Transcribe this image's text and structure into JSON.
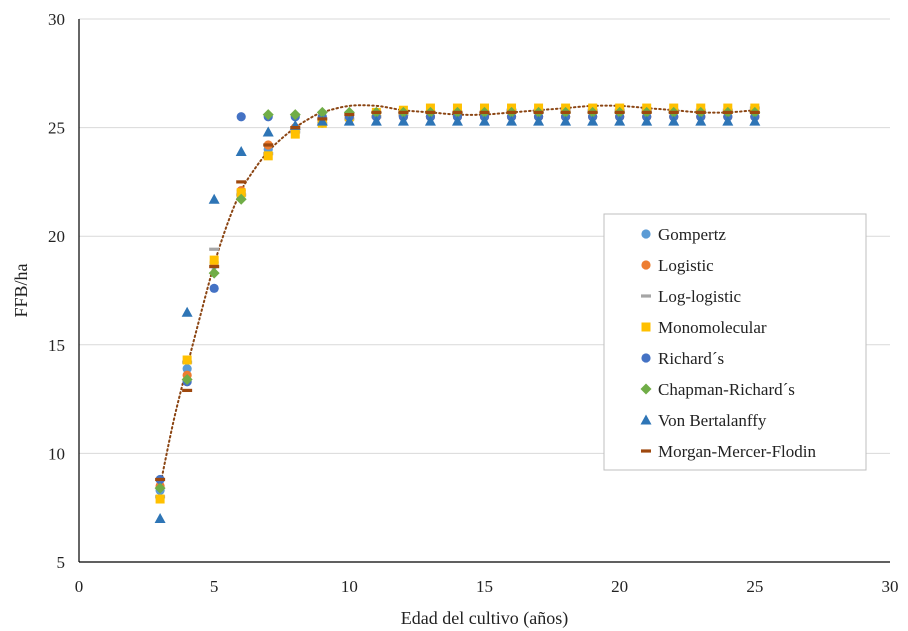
{
  "chart_data": {
    "type": "scatter",
    "title": "",
    "xlabel": "Edad del cultivo (años)",
    "ylabel": "FFB/ha",
    "xlim": [
      0,
      30
    ],
    "ylim": [
      5,
      30
    ],
    "xticks": [
      "0",
      "5",
      "10",
      "15",
      "20",
      "25",
      "30"
    ],
    "yticks": [
      "5",
      "10",
      "15",
      "20",
      "25",
      "30"
    ],
    "grid": "horizontal",
    "legend_position": "right",
    "trendline": {
      "style": "dotted",
      "color": "#8B4513",
      "x": [
        3,
        3.5,
        4,
        4.5,
        5,
        5.5,
        6,
        6.5,
        7,
        7.5,
        8,
        8.5,
        9,
        10,
        11,
        12,
        13,
        14,
        15,
        16,
        17,
        18,
        19,
        20,
        21,
        22,
        23,
        24,
        25
      ],
      "y": [
        8.5,
        11.5,
        14.0,
        16.4,
        18.7,
        20.6,
        22.1,
        23.1,
        23.9,
        24.5,
        25.0,
        25.4,
        25.7,
        26.0,
        26.0,
        25.8,
        25.7,
        25.6,
        25.6,
        25.7,
        25.8,
        25.9,
        26.0,
        26.0,
        25.9,
        25.8,
        25.7,
        25.7,
        25.8
      ]
    },
    "x": [
      3,
      4,
      5,
      6,
      7,
      8,
      9,
      10,
      11,
      12,
      13,
      14,
      15,
      16,
      17,
      18,
      19,
      20,
      21,
      22,
      23,
      24,
      25
    ],
    "series": [
      {
        "name": "Gompertz",
        "marker": "circle",
        "color": "#5B9BD5",
        "values": [
          8.3,
          13.9,
          18.7,
          22.0,
          24.0,
          24.8,
          25.2,
          25.4,
          25.5,
          25.5,
          25.5,
          25.5,
          25.5,
          25.5,
          25.5,
          25.5,
          25.5,
          25.5,
          25.5,
          25.5,
          25.5,
          25.5,
          25.5
        ]
      },
      {
        "name": "Logistic",
        "marker": "circle",
        "color": "#ED7D31",
        "values": [
          8.5,
          13.6,
          18.8,
          22.1,
          24.2,
          25.0,
          25.3,
          25.4,
          25.5,
          25.5,
          25.5,
          25.5,
          25.5,
          25.5,
          25.5,
          25.5,
          25.5,
          25.5,
          25.5,
          25.5,
          25.5,
          25.5,
          25.5
        ]
      },
      {
        "name": "Log-logistic",
        "marker": "dash",
        "color": "#A5A5A5",
        "values": [
          8.0,
          14.2,
          19.4,
          21.9,
          23.8,
          24.8,
          25.2,
          25.4,
          25.5,
          25.6,
          25.7,
          25.7,
          25.7,
          25.8,
          25.8,
          25.8,
          25.8,
          25.8,
          25.8,
          25.8,
          25.8,
          25.8,
          25.9
        ]
      },
      {
        "name": "Monomolecular",
        "marker": "square",
        "color": "#FFC000",
        "values": [
          7.9,
          14.3,
          18.9,
          22.0,
          23.7,
          24.7,
          25.2,
          25.5,
          25.7,
          25.8,
          25.9,
          25.9,
          25.9,
          25.9,
          25.9,
          25.9,
          25.9,
          25.9,
          25.9,
          25.9,
          25.9,
          25.9,
          25.9
        ]
      },
      {
        "name": "Richard´s",
        "marker": "circle",
        "color": "#4472C4",
        "values": [
          8.8,
          13.3,
          17.6,
          25.5,
          25.5,
          25.5,
          25.5,
          25.5,
          25.5,
          25.5,
          25.5,
          25.5,
          25.5,
          25.5,
          25.5,
          25.5,
          25.5,
          25.5,
          25.5,
          25.5,
          25.5,
          25.5,
          25.5
        ]
      },
      {
        "name": "Chapman-Richard´s",
        "marker": "diamond",
        "color": "#70AD47",
        "values": [
          8.4,
          13.4,
          18.3,
          21.7,
          25.6,
          25.6,
          25.7,
          25.7,
          25.7,
          25.7,
          25.7,
          25.7,
          25.7,
          25.7,
          25.7,
          25.7,
          25.7,
          25.7,
          25.7,
          25.7,
          25.7,
          25.7,
          25.7
        ]
      },
      {
        "name": "Von Bertalanffy",
        "marker": "triangle",
        "color": "#2E75B6",
        "values": [
          7.0,
          16.5,
          21.7,
          23.9,
          24.8,
          25.1,
          25.3,
          25.3,
          25.3,
          25.3,
          25.3,
          25.3,
          25.3,
          25.3,
          25.3,
          25.3,
          25.3,
          25.3,
          25.3,
          25.3,
          25.3,
          25.3,
          25.3
        ]
      },
      {
        "name": "Morgan-Mercer-Flodin",
        "marker": "dash",
        "color": "#9E480E",
        "values": [
          8.8,
          12.9,
          18.6,
          22.5,
          24.2,
          25.0,
          25.4,
          25.6,
          25.7,
          25.7,
          25.7,
          25.7,
          25.7,
          25.7,
          25.7,
          25.7,
          25.7,
          25.7,
          25.7,
          25.7,
          25.7,
          25.7,
          25.7
        ]
      }
    ]
  }
}
